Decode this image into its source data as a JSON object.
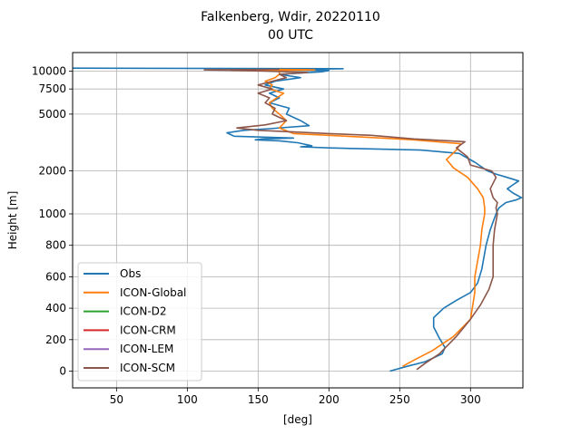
{
  "chart_data": {
    "type": "line",
    "title": "Falkenberg, Wdir, 20220110",
    "subtitle": "00 UTC",
    "xlabel": "[deg]",
    "ylabel": "Height [m]",
    "xlim": [
      19,
      337
    ],
    "x_ticks": [
      50,
      100,
      150,
      200,
      250,
      300
    ],
    "y_ticks": [
      0,
      200,
      400,
      600,
      800,
      1000,
      2000,
      5000,
      7500,
      10000
    ],
    "grid": true,
    "legend_position": "lower-left",
    "series": [
      {
        "name": "Obs",
        "color": "#1f77b4",
        "points": [
          [
            243,
            0
          ],
          [
            255,
            30
          ],
          [
            268,
            60
          ],
          [
            280,
            110
          ],
          [
            282,
            150
          ],
          [
            278,
            210
          ],
          [
            274,
            280
          ],
          [
            274,
            340
          ],
          [
            281,
            400
          ],
          [
            290,
            450
          ],
          [
            300,
            500
          ],
          [
            305,
            560
          ],
          [
            308,
            650
          ],
          [
            311,
            800
          ],
          [
            314,
            900
          ],
          [
            318,
            1000
          ],
          [
            319,
            1050
          ],
          [
            320,
            1100
          ],
          [
            325,
            1200
          ],
          [
            332,
            1250
          ],
          [
            336,
            1300
          ],
          [
            330,
            1400
          ],
          [
            326,
            1500
          ],
          [
            330,
            1600
          ],
          [
            334,
            1700
          ],
          [
            326,
            1800
          ],
          [
            318,
            1900
          ],
          [
            312,
            2000
          ],
          [
            303,
            2300
          ],
          [
            292,
            2650
          ],
          [
            265,
            2800
          ],
          [
            200,
            2900
          ],
          [
            180,
            2950
          ],
          [
            188,
            3000
          ],
          [
            178,
            3150
          ],
          [
            165,
            3250
          ],
          [
            148,
            3300
          ],
          [
            153,
            3350
          ],
          [
            175,
            3400
          ],
          [
            133,
            3500
          ],
          [
            128,
            3700
          ],
          [
            140,
            3850
          ],
          [
            158,
            3950
          ],
          [
            186,
            4150
          ],
          [
            180,
            4500
          ],
          [
            170,
            5000
          ],
          [
            172,
            5500
          ],
          [
            158,
            6000
          ],
          [
            165,
            6500
          ],
          [
            158,
            7000
          ],
          [
            168,
            7500
          ],
          [
            155,
            8000
          ],
          [
            162,
            8500
          ],
          [
            180,
            9000
          ],
          [
            165,
            9500
          ],
          [
            195,
            9900
          ],
          [
            200,
            10100
          ],
          [
            160,
            10200
          ],
          [
            210,
            10400
          ],
          [
            19,
            10500
          ]
        ]
      },
      {
        "name": "ICON-Global",
        "color": "#ff7f0e",
        "points": [
          [
            252,
            30
          ],
          [
            260,
            70
          ],
          [
            273,
            130
          ],
          [
            288,
            220
          ],
          [
            300,
            330
          ],
          [
            303,
            500
          ],
          [
            303,
            600
          ],
          [
            305,
            700
          ],
          [
            307,
            800
          ],
          [
            308,
            900
          ],
          [
            310,
            1000
          ],
          [
            310,
            1100
          ],
          [
            309,
            1300
          ],
          [
            305,
            1500
          ],
          [
            298,
            1800
          ],
          [
            288,
            2100
          ],
          [
            283,
            2400
          ],
          [
            290,
            2800
          ],
          [
            293,
            3100
          ],
          [
            260,
            3300
          ],
          [
            225,
            3450
          ],
          [
            175,
            3650
          ],
          [
            165,
            4000
          ],
          [
            170,
            4500
          ],
          [
            165,
            5000
          ],
          [
            160,
            5500
          ],
          [
            158,
            6000
          ],
          [
            168,
            7000
          ],
          [
            158,
            7500
          ],
          [
            160,
            8000
          ],
          [
            155,
            8500
          ],
          [
            162,
            9000
          ],
          [
            165,
            9500
          ],
          [
            165,
            10000
          ],
          [
            150,
            10100
          ],
          [
            190,
            10200
          ],
          [
            165,
            10300
          ]
        ]
      },
      {
        "name": "ICON-D2",
        "color": "#2ca02c",
        "points": []
      },
      {
        "name": "ICON-CRM",
        "color": "#d62728",
        "points": []
      },
      {
        "name": "ICON-LEM",
        "color": "#9467bd",
        "points": []
      },
      {
        "name": "ICON-SCM",
        "color": "#8c564b",
        "points": [
          [
            262,
            10
          ],
          [
            268,
            50
          ],
          [
            278,
            110
          ],
          [
            290,
            220
          ],
          [
            300,
            330
          ],
          [
            307,
            420
          ],
          [
            313,
            520
          ],
          [
            316,
            600
          ],
          [
            316,
            700
          ],
          [
            316,
            800
          ],
          [
            317,
            900
          ],
          [
            319,
            1000
          ],
          [
            318,
            1100
          ],
          [
            319,
            1200
          ],
          [
            316,
            1300
          ],
          [
            314,
            1500
          ],
          [
            318,
            1800
          ],
          [
            315,
            2000
          ],
          [
            300,
            2200
          ],
          [
            298,
            2500
          ],
          [
            290,
            2900
          ],
          [
            296,
            3200
          ],
          [
            260,
            3350
          ],
          [
            230,
            3550
          ],
          [
            200,
            3650
          ],
          [
            175,
            3750
          ],
          [
            150,
            3850
          ],
          [
            135,
            4000
          ],
          [
            155,
            4200
          ],
          [
            170,
            4500
          ],
          [
            160,
            5000
          ],
          [
            162,
            5500
          ],
          [
            155,
            6000
          ],
          [
            158,
            6500
          ],
          [
            150,
            7000
          ],
          [
            160,
            7500
          ],
          [
            150,
            8000
          ],
          [
            160,
            8500
          ],
          [
            170,
            9000
          ],
          [
            165,
            9500
          ],
          [
            185,
            9800
          ],
          [
            155,
            10000
          ],
          [
            112,
            10200
          ],
          [
            165,
            10300
          ]
        ]
      }
    ]
  }
}
